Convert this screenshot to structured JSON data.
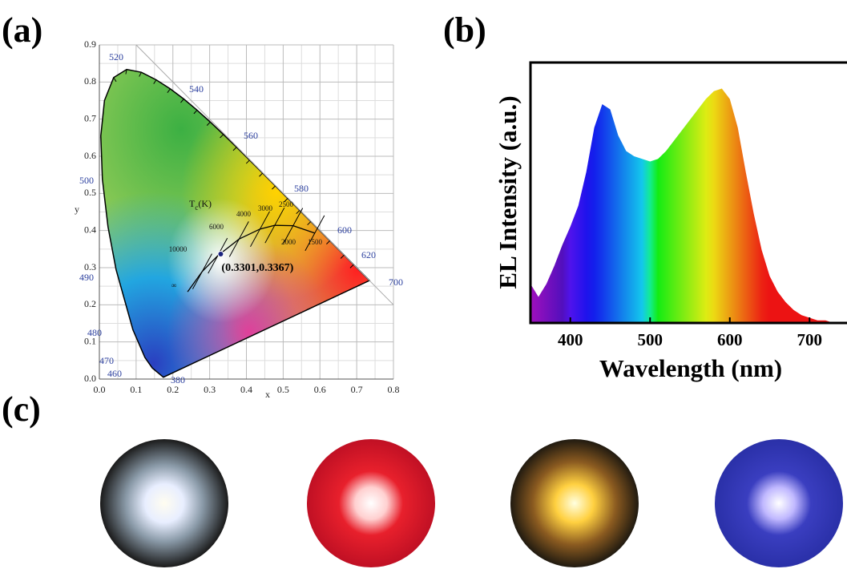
{
  "panel_labels": [
    "(a)",
    "(b)",
    "(c)"
  ],
  "chart_data": [
    {
      "type": "scatter",
      "xlabel": "x",
      "ylabel": "y",
      "xlim": [
        0,
        0.8
      ],
      "ylim": [
        0,
        0.9
      ],
      "xticks": [
        {
          "value": 0,
          "label": "0.0"
        },
        0.1,
        0.2,
        0.3,
        0.4,
        0.5,
        0.6,
        0.7,
        0.8
      ],
      "yticks": [
        {
          "value": 0,
          "label": "0.0"
        },
        0.1,
        0.2,
        0.3,
        0.4,
        0.5,
        0.6,
        0.7,
        0.8,
        0.9
      ],
      "grid": true,
      "x": [
        0.3301
      ],
      "values": [
        0.3367
      ],
      "value_labels": [
        "(0.3301,0.3367)"
      ],
      "color": "#1a237e",
      "locus_labels": [
        "520",
        "540",
        "560",
        "580",
        "600",
        "620",
        "700",
        "500",
        "490",
        "480",
        "470",
        "460",
        "380"
      ],
      "isotherm_title": [
        "T",
        "c",
        "(K)"
      ],
      "isotherm_labels": [
        "10000",
        "6000",
        "4000",
        "3000",
        "2500",
        "2000",
        "1500",
        "∞"
      ]
    },
    {
      "type": "area",
      "xlabel": "Wavelength (nm)",
      "ylabel": "EL Intensity (a.u.)",
      "xlim": [
        350,
        750
      ],
      "ylim": [
        0,
        1
      ],
      "xticks": [
        400,
        500,
        600,
        700
      ],
      "x": [
        350,
        360,
        370,
        380,
        390,
        400,
        410,
        420,
        430,
        440,
        450,
        460,
        470,
        480,
        490,
        500,
        510,
        520,
        530,
        540,
        550,
        560,
        570,
        580,
        590,
        600,
        610,
        620,
        630,
        640,
        650,
        660,
        670,
        680,
        690,
        700,
        710,
        720,
        730,
        740,
        750
      ],
      "values": [
        0.15,
        0.1,
        0.15,
        0.22,
        0.3,
        0.37,
        0.45,
        0.58,
        0.75,
        0.84,
        0.82,
        0.72,
        0.66,
        0.64,
        0.63,
        0.62,
        0.63,
        0.66,
        0.7,
        0.74,
        0.78,
        0.82,
        0.86,
        0.89,
        0.9,
        0.86,
        0.75,
        0.58,
        0.42,
        0.28,
        0.18,
        0.12,
        0.08,
        0.05,
        0.03,
        0.02,
        0.01,
        0.01,
        0,
        0,
        0
      ]
    }
  ]
}
